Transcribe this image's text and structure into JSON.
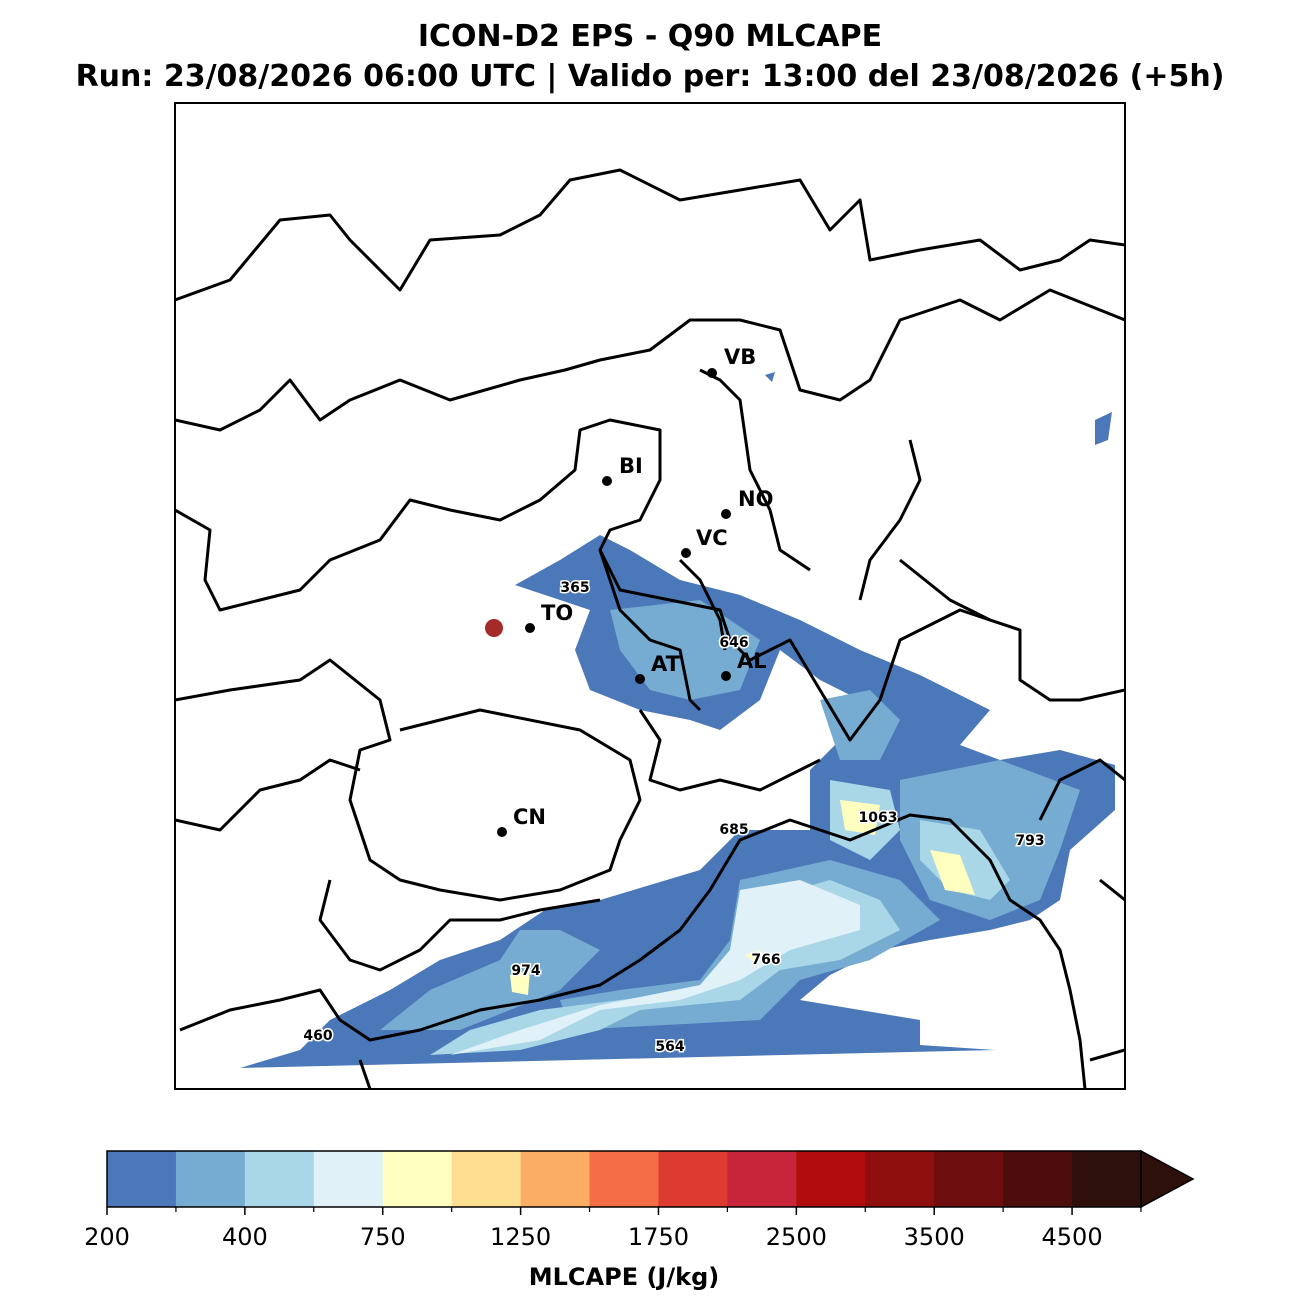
{
  "header": {
    "title": "ICON-D2 EPS - Q90 MLCAPE",
    "subtitle": "Run: 23/08/2026 06:00 UTC | Valido per: 13:00 del 23/08/2026 (+5h)"
  },
  "map": {
    "cities": [
      "VB",
      "BI",
      "NO",
      "VC",
      "TO",
      "AT",
      "AL",
      "CN"
    ],
    "value_labels": [
      365,
      646,
      1063,
      685,
      793,
      974,
      766,
      564,
      460
    ]
  },
  "colorbar": {
    "colors": [
      "#4a78b8",
      "#76acd1",
      "#a9d7e8",
      "#e0f2f8",
      "#ffffc0",
      "#fedf91",
      "#fbae63",
      "#f46d45",
      "#dd3b2f",
      "#c8243a",
      "#b10d0d",
      "#8f0e0e",
      "#6e0d0d",
      "#4c0e0d",
      "#2d0f0c"
    ],
    "ticks": [
      200,
      400,
      750,
      1250,
      1750,
      2500,
      3500,
      4500
    ],
    "label": "MLCAPE (J/kg)"
  }
}
